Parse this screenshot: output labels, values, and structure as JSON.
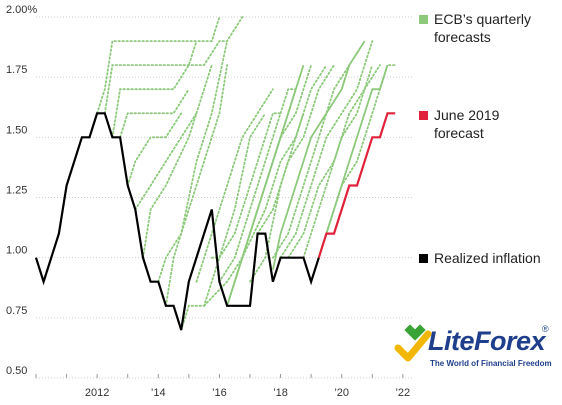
{
  "chart_data": {
    "type": "line",
    "title": "",
    "xlabel": "",
    "ylabel": "",
    "xlim": [
      2010.0,
      2022.3
    ],
    "ylim": [
      0.5,
      2.0
    ],
    "y_ticks": [
      {
        "value": 2.0,
        "label": "2.00%"
      },
      {
        "value": 1.75,
        "label": "1.75"
      },
      {
        "value": 1.5,
        "label": "1.50"
      },
      {
        "value": 1.25,
        "label": "1.25"
      },
      {
        "value": 1.0,
        "label": "1.00"
      },
      {
        "value": 0.75,
        "label": "0.75"
      },
      {
        "value": 0.5,
        "label": "0.50"
      }
    ],
    "x_ticks": [
      {
        "value": 2012,
        "label": "2012"
      },
      {
        "value": 2014,
        "label": "’14"
      },
      {
        "value": 2016,
        "label": "’16"
      },
      {
        "value": 2018,
        "label": "’18"
      },
      {
        "value": 2020,
        "label": "’20"
      },
      {
        "value": 2022,
        "label": "’22"
      }
    ],
    "grid": "horizontal",
    "legend_position": "right",
    "series": [
      {
        "name": "Realized inflation",
        "color": "#000000",
        "style": "solid",
        "points": [
          [
            2010.0,
            1.0
          ],
          [
            2010.25,
            0.9
          ],
          [
            2010.75,
            1.1
          ],
          [
            2011.0,
            1.3
          ],
          [
            2011.5,
            1.5
          ],
          [
            2011.75,
            1.5
          ],
          [
            2012.0,
            1.6
          ],
          [
            2012.25,
            1.6
          ],
          [
            2012.5,
            1.5
          ],
          [
            2012.75,
            1.5
          ],
          [
            2013.0,
            1.3
          ],
          [
            2013.25,
            1.2
          ],
          [
            2013.5,
            1.0
          ],
          [
            2013.75,
            0.9
          ],
          [
            2014.0,
            0.9
          ],
          [
            2014.25,
            0.8
          ],
          [
            2014.5,
            0.8
          ],
          [
            2014.75,
            0.7
          ],
          [
            2015.0,
            0.9
          ],
          [
            2015.5,
            1.1
          ],
          [
            2015.75,
            1.2
          ],
          [
            2016.0,
            0.9
          ],
          [
            2016.25,
            0.8
          ],
          [
            2016.5,
            0.8
          ],
          [
            2016.75,
            0.8
          ],
          [
            2017.0,
            0.8
          ],
          [
            2017.25,
            1.1
          ],
          [
            2017.5,
            1.1
          ],
          [
            2017.75,
            0.9
          ],
          [
            2018.0,
            1.0
          ],
          [
            2018.25,
            1.0
          ],
          [
            2018.5,
            1.0
          ],
          [
            2018.75,
            1.0
          ],
          [
            2019.0,
            0.9
          ],
          [
            2019.25,
            1.0
          ]
        ]
      },
      {
        "name": "June 2019 forecast",
        "color": "#e0223a",
        "style": "solid",
        "points": [
          [
            2019.25,
            1.0
          ],
          [
            2019.5,
            1.1
          ],
          [
            2019.75,
            1.1
          ],
          [
            2020.0,
            1.2
          ],
          [
            2020.25,
            1.3
          ],
          [
            2020.5,
            1.3
          ],
          [
            2020.75,
            1.4
          ],
          [
            2021.0,
            1.5
          ],
          [
            2021.25,
            1.5
          ],
          [
            2021.5,
            1.6
          ],
          [
            2021.75,
            1.6
          ]
        ]
      },
      {
        "name": "ECB’s quarterly forecasts",
        "color": "#8cc97a",
        "style": "dotted",
        "lines": [
          [
            [
              2012.0,
              1.6
            ],
            [
              2012.25,
              1.7
            ],
            [
              2012.5,
              1.9
            ],
            [
              2013.0,
              1.9
            ],
            [
              2014.0,
              1.9
            ],
            [
              2015.0,
              1.9
            ],
            [
              2015.75,
              1.9
            ],
            [
              2016.0,
              2.0
            ]
          ],
          [
            [
              2012.25,
              1.6
            ],
            [
              2012.5,
              1.8
            ],
            [
              2013.0,
              1.8
            ],
            [
              2014.0,
              1.8
            ],
            [
              2015.5,
              1.8
            ],
            [
              2016.0,
              1.9
            ],
            [
              2016.25,
              1.9
            ],
            [
              2016.75,
              2.0
            ]
          ],
          [
            [
              2012.5,
              1.5
            ],
            [
              2012.75,
              1.7
            ],
            [
              2013.25,
              1.7
            ],
            [
              2014.5,
              1.7
            ],
            [
              2015.0,
              1.8
            ],
            [
              2015.25,
              1.9
            ]
          ],
          [
            [
              2012.75,
              1.5
            ],
            [
              2013.0,
              1.6
            ],
            [
              2014.0,
              1.6
            ],
            [
              2014.5,
              1.6
            ],
            [
              2015.0,
              1.7
            ]
          ],
          [
            [
              2013.0,
              1.3
            ],
            [
              2013.25,
              1.4
            ],
            [
              2013.75,
              1.5
            ],
            [
              2014.25,
              1.5
            ],
            [
              2014.75,
              1.6
            ]
          ],
          [
            [
              2013.25,
              1.2
            ],
            [
              2013.75,
              1.3
            ],
            [
              2014.25,
              1.4
            ],
            [
              2014.75,
              1.5
            ],
            [
              2015.25,
              1.6
            ]
          ],
          [
            [
              2013.5,
              1.0
            ],
            [
              2013.75,
              1.2
            ],
            [
              2014.25,
              1.3
            ],
            [
              2015.0,
              1.5
            ],
            [
              2015.5,
              1.7
            ],
            [
              2015.75,
              1.8
            ]
          ],
          [
            [
              2014.0,
              0.9
            ],
            [
              2014.25,
              1.0
            ],
            [
              2014.75,
              1.1
            ],
            [
              2015.25,
              1.4
            ],
            [
              2015.75,
              1.6
            ],
            [
              2016.25,
              1.9
            ]
          ],
          [
            [
              2014.25,
              0.8
            ],
            [
              2014.5,
              1.0
            ],
            [
              2015.0,
              1.2
            ],
            [
              2015.5,
              1.4
            ],
            [
              2016.0,
              1.6
            ],
            [
              2016.25,
              1.8
            ]
          ],
          [
            [
              2014.75,
              0.7
            ],
            [
              2015.0,
              0.8
            ],
            [
              2015.5,
              0.8
            ],
            [
              2016.0,
              1.0
            ],
            [
              2016.5,
              1.2
            ],
            [
              2017.0,
              1.5
            ],
            [
              2017.5,
              1.6
            ]
          ],
          [
            [
              2015.25,
              0.9
            ],
            [
              2015.75,
              1.1
            ],
            [
              2016.25,
              1.3
            ],
            [
              2016.75,
              1.5
            ],
            [
              2017.25,
              1.6
            ],
            [
              2017.75,
              1.7
            ]
          ],
          [
            [
              2015.75,
              1.0
            ],
            [
              2016.0,
              1.0
            ],
            [
              2016.5,
              1.1
            ],
            [
              2017.0,
              1.3
            ],
            [
              2017.5,
              1.5
            ],
            [
              2017.75,
              1.6
            ],
            [
              2018.0,
              1.6
            ]
          ],
          [
            [
              2016.0,
              0.9
            ],
            [
              2016.5,
              1.0
            ],
            [
              2017.0,
              1.2
            ],
            [
              2017.75,
              1.5
            ],
            [
              2018.25,
              1.7
            ],
            [
              2018.5,
              1.7
            ]
          ],
          [
            [
              2016.25,
              0.8
            ],
            [
              2016.75,
              1.0
            ],
            [
              2017.25,
              1.2
            ],
            [
              2017.75,
              1.4
            ],
            [
              2018.25,
              1.6
            ],
            [
              2018.5,
              1.7
            ]
          ],
          [
            [
              2016.5,
              0.9
            ],
            [
              2017.0,
              1.1
            ],
            [
              2017.5,
              1.3
            ],
            [
              2018.0,
              1.5
            ],
            [
              2018.5,
              1.6
            ],
            [
              2018.75,
              1.7
            ],
            [
              2019.0,
              1.8
            ]
          ],
          [
            [
              2017.0,
              0.9
            ],
            [
              2017.5,
              1.0
            ],
            [
              2018.0,
              1.3
            ],
            [
              2018.5,
              1.5
            ],
            [
              2019.0,
              1.7
            ],
            [
              2019.5,
              1.8
            ]
          ],
          [
            [
              2017.25,
              1.1
            ],
            [
              2017.75,
              1.2
            ],
            [
              2018.25,
              1.4
            ],
            [
              2018.75,
              1.5
            ],
            [
              2019.25,
              1.7
            ],
            [
              2019.75,
              1.8
            ]
          ],
          [
            [
              2017.75,
              1.0
            ],
            [
              2018.25,
              1.1
            ],
            [
              2018.75,
              1.3
            ],
            [
              2019.25,
              1.5
            ],
            [
              2019.75,
              1.7
            ],
            [
              2020.25,
              1.8
            ]
          ],
          [
            [
              2018.0,
              1.0
            ],
            [
              2018.5,
              1.1
            ],
            [
              2019.0,
              1.3
            ],
            [
              2019.5,
              1.5
            ],
            [
              2020.0,
              1.6
            ],
            [
              2020.5,
              1.7
            ],
            [
              2020.75,
              1.8
            ],
            [
              2021.0,
              1.9
            ]
          ],
          [
            [
              2018.25,
              1.0
            ],
            [
              2018.75,
              1.1
            ],
            [
              2019.25,
              1.3
            ],
            [
              2019.75,
              1.4
            ],
            [
              2020.25,
              1.6
            ],
            [
              2020.75,
              1.7
            ],
            [
              2021.0,
              1.8
            ]
          ],
          [
            [
              2018.75,
              1.0
            ],
            [
              2019.0,
              1.1
            ],
            [
              2019.5,
              1.3
            ],
            [
              2020.0,
              1.5
            ],
            [
              2020.5,
              1.6
            ],
            [
              2020.75,
              1.7
            ],
            [
              2021.25,
              1.8
            ]
          ],
          [
            [
              2019.0,
              0.9
            ],
            [
              2019.5,
              1.1
            ],
            [
              2020.0,
              1.3
            ],
            [
              2020.5,
              1.4
            ],
            [
              2021.0,
              1.6
            ],
            [
              2021.5,
              1.8
            ],
            [
              2021.75,
              1.8
            ]
          ],
          [
            [
              2015.5,
              0.8
            ],
            [
              2016.25,
              0.9
            ],
            [
              2016.75,
              1.0
            ],
            [
              2017.5,
              1.2
            ],
            [
              2018.0,
              1.4
            ],
            [
              2018.5,
              1.5
            ],
            [
              2018.75,
              1.6
            ]
          ]
        ],
        "solid_lines": [
          [
            [
              2016.25,
              0.8
            ],
            [
              2016.75,
              1.0
            ],
            [
              2017.25,
              1.2
            ],
            [
              2017.75,
              1.4
            ],
            [
              2018.0,
              1.5
            ],
            [
              2018.25,
              1.6
            ],
            [
              2018.5,
              1.7
            ],
            [
              2018.75,
              1.8
            ]
          ],
          [
            [
              2017.75,
              0.95
            ],
            [
              2018.0,
              1.1
            ],
            [
              2018.5,
              1.3
            ],
            [
              2019.0,
              1.5
            ],
            [
              2019.5,
              1.6
            ],
            [
              2020.0,
              1.7
            ],
            [
              2020.25,
              1.8
            ],
            [
              2020.75,
              1.9
            ]
          ],
          [
            [
              2019.25,
              1.0
            ],
            [
              2019.75,
              1.2
            ],
            [
              2020.25,
              1.4
            ],
            [
              2020.75,
              1.6
            ],
            [
              2021.0,
              1.7
            ],
            [
              2021.25,
              1.7
            ],
            [
              2021.5,
              1.8
            ]
          ]
        ]
      }
    ]
  },
  "legend": {
    "forecasts": {
      "label": "ECB’s quarterly forecasts",
      "color": "#8cc97a"
    },
    "june": {
      "label": "June 2019 forecast",
      "color": "#e0223a"
    },
    "realized": {
      "label": "Realized inflation",
      "color": "#000000"
    }
  },
  "watermark": {
    "name": "LiteForex",
    "tagline": "The World of Financial Freedom",
    "registered": "®"
  }
}
